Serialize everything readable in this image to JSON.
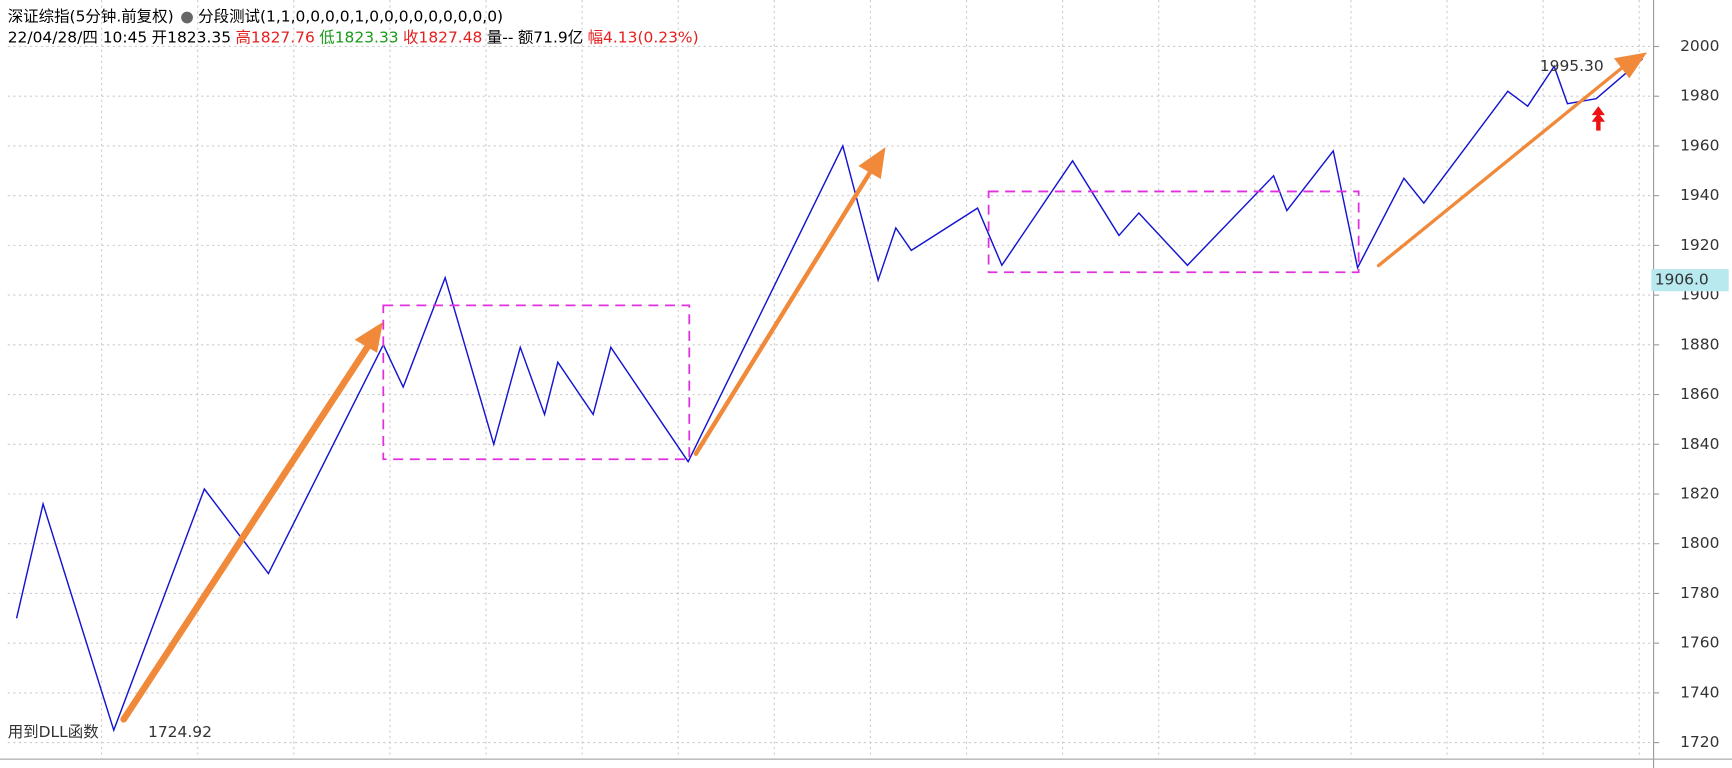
{
  "chart_data": {
    "type": "line",
    "title": "深证综指(5分钟.前复权)",
    "indicator": "分段测试(1,1,0,0,0,0,1,0,0,0,0,0,0,0,0,0)",
    "info": {
      "datetime": "22/04/28/四 10:45",
      "open": "开1823.35",
      "high": "高1827.76",
      "low": "低1823.33",
      "close": "收1827.48",
      "volume": "量--",
      "amount": "额71.9亿",
      "change": "幅4.13(0.23%)"
    },
    "high_label": "1995.30",
    "low_note": "用到DLL函数",
    "low_label": "1724.92",
    "current_price": {
      "value": 1906.0,
      "label": "1906.0"
    },
    "series": [
      {
        "name": "分段测试",
        "color": "#1414d2",
        "x": [
          4,
          16,
          48,
          89,
          118,
          170,
          179,
          198,
          220,
          232,
          243,
          249,
          265,
          273,
          308,
          378,
          394,
          402,
          409,
          439,
          450,
          482,
          503,
          512,
          534,
          573,
          579,
          600,
          611,
          632,
          641,
          679,
          688,
          700,
          706,
          719,
          740
        ],
        "values": [
          1770,
          1816,
          1725,
          1822,
          1788,
          1880,
          1863,
          1907,
          1840,
          1879,
          1852,
          1873,
          1852,
          1879,
          1833,
          1960,
          1906,
          1927,
          1918,
          1935,
          1912,
          1954,
          1924,
          1933,
          1912,
          1948,
          1934,
          1958,
          1911,
          1947,
          1937,
          1982,
          1976,
          1992,
          1977,
          1979,
          1995
        ]
      }
    ],
    "xlim": [
      0,
      745
    ],
    "ylim": [
      1713.8,
      2018.7
    ],
    "yticks": [
      1720,
      1740,
      1760,
      1780,
      1800,
      1820,
      1840,
      1860,
      1880,
      1900,
      1920,
      1940,
      1960,
      1980,
      2000
    ],
    "grid": true
  }
}
